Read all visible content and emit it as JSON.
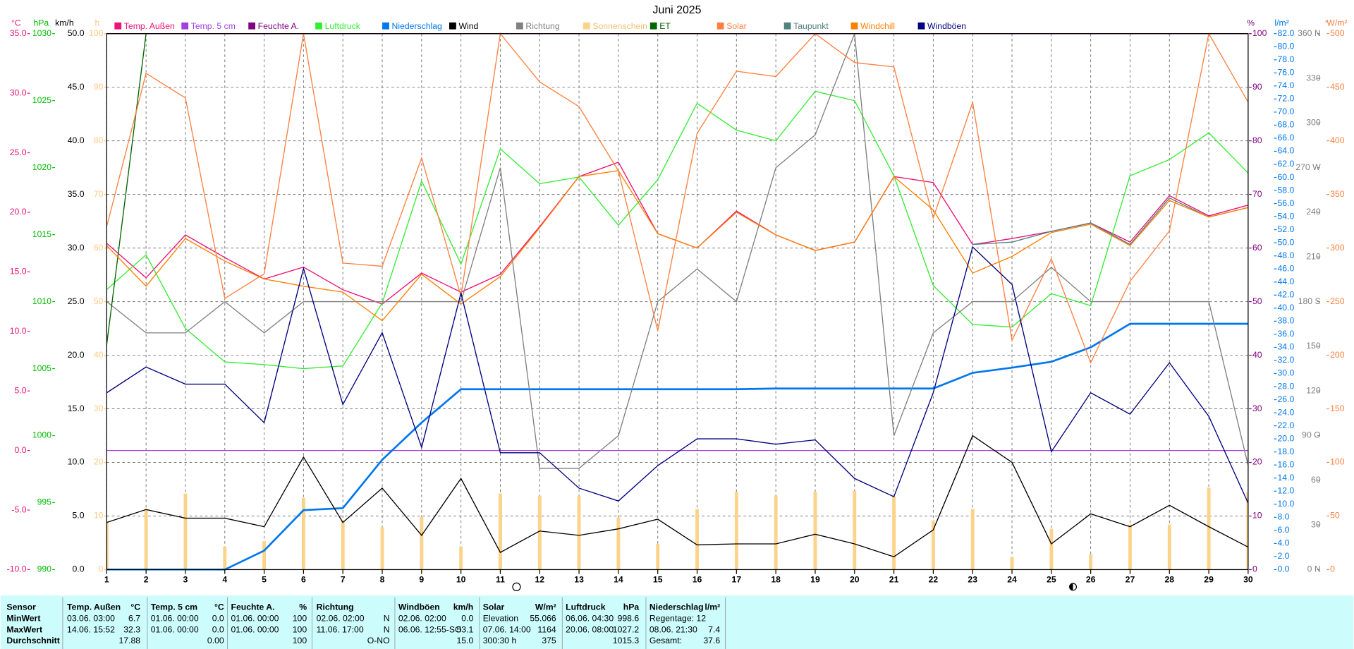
{
  "chart_data": {
    "type": "line",
    "title": "Juni 2025",
    "x": [
      1,
      2,
      3,
      4,
      5,
      6,
      7,
      8,
      9,
      10,
      11,
      12,
      13,
      14,
      15,
      16,
      17,
      18,
      19,
      20,
      21,
      22,
      23,
      24,
      25,
      26,
      27,
      28,
      29,
      30
    ],
    "xlim": [
      1,
      30
    ],
    "xticks": [
      1,
      2,
      3,
      4,
      5,
      6,
      7,
      8,
      9,
      10,
      11,
      12,
      13,
      14,
      15,
      16,
      17,
      18,
      19,
      20,
      21,
      22,
      23,
      24,
      25,
      26,
      27,
      28,
      29,
      30
    ],
    "xgrid": true,
    "y_axes": [
      {
        "unit": "°C",
        "color": "#ee1177",
        "side": "left",
        "ylim": [
          -10,
          35
        ],
        "yticks": [
          {
            "value": -10,
            "label": "-10.0"
          },
          {
            "value": -5,
            "label": "-5.0"
          },
          {
            "value": 0,
            "label": "0.0"
          },
          {
            "value": 5,
            "label": "5.0"
          },
          {
            "value": 10,
            "label": "10.0"
          },
          {
            "value": 15,
            "label": "15.0"
          },
          {
            "value": 20,
            "label": "20.0"
          },
          {
            "value": 25,
            "label": "25.0"
          },
          {
            "value": 30,
            "label": "30.0"
          },
          {
            "value": 35,
            "label": "35.0"
          }
        ]
      },
      {
        "unit": "hPa",
        "color": "#00bb00",
        "side": "left",
        "ylim": [
          990,
          1030
        ],
        "yticks": [
          990,
          995,
          1000,
          1005,
          1010,
          1015,
          1020,
          1025,
          1030
        ]
      },
      {
        "unit": "km/h",
        "color": "#000000",
        "side": "left",
        "ylim": [
          0,
          50
        ],
        "grid": true,
        "yticks": [
          {
            "value": 0,
            "label": "0.0"
          },
          {
            "value": 5,
            "label": "5.0"
          },
          {
            "value": 10,
            "label": "10.0"
          },
          {
            "value": 15,
            "label": "15.0"
          },
          {
            "value": 20,
            "label": "20.0"
          },
          {
            "value": 25,
            "label": "25.0"
          },
          {
            "value": 30,
            "label": "30.0"
          },
          {
            "value": 35,
            "label": "35.0"
          },
          {
            "value": 40,
            "label": "40.0"
          },
          {
            "value": 45,
            "label": "45.0"
          },
          {
            "value": 50,
            "label": "50.0"
          }
        ]
      },
      {
        "unit": "h",
        "color": "#ffc880",
        "side": "left",
        "ylim": [
          0,
          100
        ],
        "yticks": [
          0,
          10,
          20,
          30,
          40,
          50,
          60,
          70,
          80,
          90,
          100
        ]
      },
      {
        "unit": "%",
        "color": "#800080",
        "side": "right",
        "ylim": [
          0,
          100
        ],
        "yticks": [
          0,
          10,
          20,
          30,
          40,
          50,
          60,
          70,
          80,
          90,
          100
        ]
      },
      {
        "unit": "l/m²",
        "color": "#0077ee",
        "side": "right",
        "ylim": [
          0,
          82
        ],
        "yticks": [
          {
            "value": 0,
            "label": "0.0"
          },
          {
            "value": 2,
            "label": "2.0"
          },
          {
            "value": 4,
            "label": "4.0"
          },
          {
            "value": 6,
            "label": "6.0"
          },
          {
            "value": 8,
            "label": "8.0"
          },
          {
            "value": 10,
            "label": "10.0"
          },
          {
            "value": 12,
            "label": "12.0"
          },
          {
            "value": 14,
            "label": "14.0"
          },
          {
            "value": 16,
            "label": "16.0"
          },
          {
            "value": 18,
            "label": "18.0"
          },
          {
            "value": 20,
            "label": "20.0"
          },
          {
            "value": 22,
            "label": "22.0"
          },
          {
            "value": 24,
            "label": "24.0"
          },
          {
            "value": 26,
            "label": "26.0"
          },
          {
            "value": 28,
            "label": "28.0"
          },
          {
            "value": 30,
            "label": "30.0"
          },
          {
            "value": 32,
            "label": "32.0"
          },
          {
            "value": 34,
            "label": "34.0"
          },
          {
            "value": 36,
            "label": "36.0"
          },
          {
            "value": 38,
            "label": "38.0"
          },
          {
            "value": 40,
            "label": "40.0"
          },
          {
            "value": 42,
            "label": "42.0"
          },
          {
            "value": 44,
            "label": "44.0"
          },
          {
            "value": 46,
            "label": "46.0"
          },
          {
            "value": 48,
            "label": "48.0"
          },
          {
            "value": 50,
            "label": "50.0"
          },
          {
            "value": 52,
            "label": "52.0"
          },
          {
            "value": 54,
            "label": "54.0"
          },
          {
            "value": 56,
            "label": "56.0"
          },
          {
            "value": 58,
            "label": "58.0"
          },
          {
            "value": 60,
            "label": "60.0"
          },
          {
            "value": 62,
            "label": "62.0"
          },
          {
            "value": 64,
            "label": "64.0"
          },
          {
            "value": 66,
            "label": "66.0"
          },
          {
            "value": 68,
            "label": "68.0"
          },
          {
            "value": 70,
            "label": "70.0"
          },
          {
            "value": 72,
            "label": "72.0"
          },
          {
            "value": 74,
            "label": "74.0"
          },
          {
            "value": 76,
            "label": "76.0"
          },
          {
            "value": 78,
            "label": "78.0"
          },
          {
            "value": 80,
            "label": "80.0"
          },
          {
            "value": 82,
            "label": "82.0"
          }
        ]
      },
      {
        "unit": "°",
        "color": "#808080",
        "side": "right",
        "ylim": [
          0,
          360
        ],
        "yticks": [
          {
            "value": 0,
            "label": "0 N"
          },
          30,
          60,
          {
            "value": 90,
            "label": "90 O"
          },
          120,
          150,
          {
            "value": 180,
            "label": "180 S"
          },
          210,
          240,
          {
            "value": 270,
            "label": "270 W"
          },
          300,
          330,
          {
            "value": 360,
            "label": "360 N"
          }
        ]
      },
      {
        "unit": "W/m²",
        "color": "#ff8040",
        "side": "right",
        "ylim": [
          0,
          500
        ],
        "yticks": [
          0,
          50,
          100,
          150,
          200,
          250,
          300,
          350,
          400,
          450,
          500
        ]
      }
    ],
    "series": [
      {
        "name": "Temp. Außen",
        "color": "#ee1177",
        "axis": 0,
        "type": "line",
        "values": [
          17.4,
          14.5,
          18.1,
          16.2,
          14.4,
          15.4,
          13.5,
          12.3,
          14.9,
          13.3,
          14.8,
          18.8,
          23.0,
          24.2,
          18.2,
          17.0,
          20.1,
          18.1,
          16.8,
          17.5,
          23.0,
          22.5,
          17.3,
          17.8,
          18.4,
          19.1,
          17.5,
          21.4,
          19.7,
          20.6
        ]
      },
      {
        "name": "Temp. 5 cm",
        "color": "#a040e0",
        "axis": 0,
        "type": "line",
        "values": [
          0.0,
          0.0,
          0.0,
          0.0,
          0.0,
          0.0,
          0.0,
          0.0,
          0.0,
          0.0,
          0.0,
          0.0,
          0.0,
          0.0,
          0.0,
          0.0,
          0.0,
          0.0,
          0.0,
          0.0,
          0.0,
          0.0,
          0.0,
          0.0,
          0.0,
          0.0,
          0.0,
          0.0,
          0.0,
          0.0
        ]
      },
      {
        "name": "Feuchte A.",
        "color": "#800080",
        "axis": 4,
        "type": "line",
        "values": [
          100,
          100,
          100,
          100,
          100,
          100,
          100,
          100,
          100,
          100,
          100,
          100,
          100,
          100,
          100,
          100,
          100,
          100,
          100,
          100,
          100,
          100,
          100,
          100,
          100,
          100,
          100,
          100,
          100,
          100
        ]
      },
      {
        "name": "Luftdruck",
        "color": "#33ee33",
        "axis": 1,
        "type": "line",
        "values": [
          1010.9,
          1013.5,
          1008.0,
          1005.5,
          1005.3,
          1005.0,
          1005.2,
          1009.9,
          1019.0,
          1012.8,
          1021.4,
          1018.8,
          1019.3,
          1015.7,
          1019.1,
          1024.8,
          1022.8,
          1022.0,
          1025.7,
          1025.0,
          1019.4,
          1011.2,
          1008.3,
          1008.1,
          1010.6,
          1009.7,
          1019.4,
          1020.6,
          1022.6,
          1019.6
        ]
      },
      {
        "name": "Niederschlag",
        "color": "#0077ee",
        "axis": 5,
        "type": "line",
        "values": [
          0,
          0,
          0,
          0,
          2.9,
          9.1,
          9.4,
          16.8,
          22.5,
          27.6,
          27.6,
          27.6,
          27.6,
          27.6,
          27.6,
          27.6,
          27.6,
          27.7,
          27.7,
          27.7,
          27.7,
          27.7,
          30.1,
          30.9,
          31.8,
          34.0,
          37.6,
          37.6,
          37.6,
          37.6
        ]
      },
      {
        "name": "Wind",
        "color": "#000000",
        "axis": 2,
        "type": "line",
        "values": [
          4.4,
          5.6,
          4.8,
          4.8,
          4.0,
          10.5,
          4.4,
          7.6,
          3.2,
          8.5,
          1.6,
          3.6,
          3.2,
          3.8,
          4.7,
          2.3,
          2.4,
          2.4,
          3.3,
          2.4,
          1.2,
          3.7,
          12.5,
          10.0,
          2.4,
          5.2,
          4.0,
          6.0,
          4.0,
          2.1
        ]
      },
      {
        "name": "Richtung",
        "color": "#808080",
        "axis": 6,
        "type": "line",
        "values": [
          180,
          159,
          159,
          180,
          159,
          180,
          180,
          180,
          180,
          180,
          270,
          68,
          68,
          90,
          180,
          202,
          180,
          270,
          292,
          360,
          90,
          159,
          180,
          180,
          203,
          180,
          180,
          180,
          180,
          70
        ]
      },
      {
        "name": "Sonnenschein",
        "color": "#fcd38a",
        "axis": 3,
        "type": "bar",
        "values": [
          8.9,
          11.3,
          14.2,
          4.3,
          5.3,
          13.4,
          9.2,
          7.9,
          9.8,
          4.3,
          14.2,
          13.8,
          13.7,
          9.7,
          4.8,
          11.3,
          14.5,
          13.8,
          14.5,
          14.7,
          13.7,
          9.2,
          11.3,
          2.4,
          7.6,
          2.9,
          8.4,
          8.4,
          15.3,
          14.5
        ]
      },
      {
        "name": "ET",
        "color": "#006600",
        "axis": 1,
        "type": "line",
        "values": [
          1006.8,
          1030,
          null,
          null,
          null,
          null,
          null,
          null,
          null,
          null,
          null,
          null,
          null,
          null,
          null,
          null,
          null,
          null,
          null,
          null,
          null,
          null,
          null,
          null,
          null,
          null,
          null,
          null,
          null,
          null
        ]
      },
      {
        "name": "Solar",
        "color": "#ff8040",
        "axis": 7,
        "type": "line",
        "values": [
          320,
          463,
          440,
          253,
          276,
          500,
          286,
          283,
          384,
          255,
          500,
          455,
          432,
          372,
          223,
          407,
          465,
          460,
          500,
          473,
          469,
          328,
          436,
          214,
          290,
          193,
          269,
          316,
          500,
          436
        ]
      },
      {
        "name": "Taupunkt",
        "color": "#508080",
        "axis": 0,
        "type": "line",
        "values": [
          null,
          null,
          null,
          null,
          null,
          null,
          null,
          null,
          null,
          null,
          null,
          null,
          null,
          null,
          null,
          null,
          null,
          null,
          null,
          null,
          null,
          null,
          17.3,
          17.5,
          18.4,
          19.1,
          17.3,
          21.2,
          19.6,
          20.4
        ]
      },
      {
        "name": "Windchill",
        "color": "#ff8000",
        "axis": 0,
        "type": "line",
        "values": [
          17.2,
          13.8,
          17.8,
          15.9,
          14.4,
          13.8,
          13.3,
          10.9,
          14.8,
          12.3,
          14.6,
          18.7,
          23.0,
          23.5,
          18.2,
          17.0,
          20.0,
          18.1,
          16.8,
          17.5,
          23.0,
          20.2,
          14.9,
          16.3,
          18.3,
          19.0,
          17.2,
          21.0,
          19.6,
          20.4
        ]
      },
      {
        "name": "Windböen",
        "color": "#000080",
        "axis": 2,
        "type": "line",
        "values": [
          16.5,
          18.9,
          17.3,
          17.3,
          13.7,
          28.1,
          15.4,
          22.1,
          11.4,
          25.8,
          10.9,
          10.9,
          7.6,
          6.4,
          9.7,
          12.2,
          12.2,
          11.7,
          12.1,
          8.5,
          6.8,
          16.5,
          30.1,
          26.6,
          11.0,
          16.5,
          14.5,
          19.3,
          14.3,
          6.2
        ]
      }
    ]
  },
  "table": {
    "corner": "Sensor",
    "header": [
      [
        "Temp. Außen",
        "°C"
      ],
      [
        "Temp. 5 cm",
        "°C"
      ],
      [
        "Feuchte A.",
        "%"
      ],
      [
        "Richtung",
        null
      ],
      [
        "Windböen",
        "km/h"
      ],
      [
        "Solar",
        "W/m²"
      ],
      [
        "Luftdruck",
        "hPa"
      ],
      [
        "Niederschlag",
        "l/m²"
      ]
    ],
    "rows": [
      {
        "label": "MinWert",
        "cells": [
          [
            "03.06. 03:00",
            "6.7"
          ],
          [
            "01.06. 00:00",
            "0.0"
          ],
          [
            "01.06. 00:00",
            "100"
          ],
          [
            "02.06. 02:00",
            "N"
          ],
          [
            "02.06. 02:00",
            "0.0"
          ],
          [
            "Elevation",
            "55.066"
          ],
          [
            "06.06. 04:30",
            "998.6"
          ],
          [
            "Regentage: 12",
            null
          ]
        ]
      },
      {
        "label": "MaxWert",
        "cells": [
          [
            "14.06. 15:52",
            "32.3"
          ],
          [
            "01.06. 00:00",
            "0.0"
          ],
          [
            "01.06. 00:00",
            "100"
          ],
          [
            "11.06. 17:00",
            "N"
          ],
          [
            "06.06. 12:55-SO",
            "53.1"
          ],
          [
            "07.06. 14:00",
            "1164"
          ],
          [
            "20.06. 08:00",
            "1027.2"
          ],
          [
            "08.06. 21:30",
            "7.4"
          ]
        ]
      },
      {
        "label": "Durchschnitt",
        "cells": [
          [
            null,
            "17.88"
          ],
          [
            null,
            "0.00"
          ],
          [
            null,
            "100"
          ],
          [
            null,
            "O-NO"
          ],
          [
            null,
            "15.0"
          ],
          [
            "300:30 h",
            "375"
          ],
          [
            null,
            "1015.3"
          ],
          [
            "Gesamt:",
            "37.6"
          ]
        ]
      }
    ]
  }
}
